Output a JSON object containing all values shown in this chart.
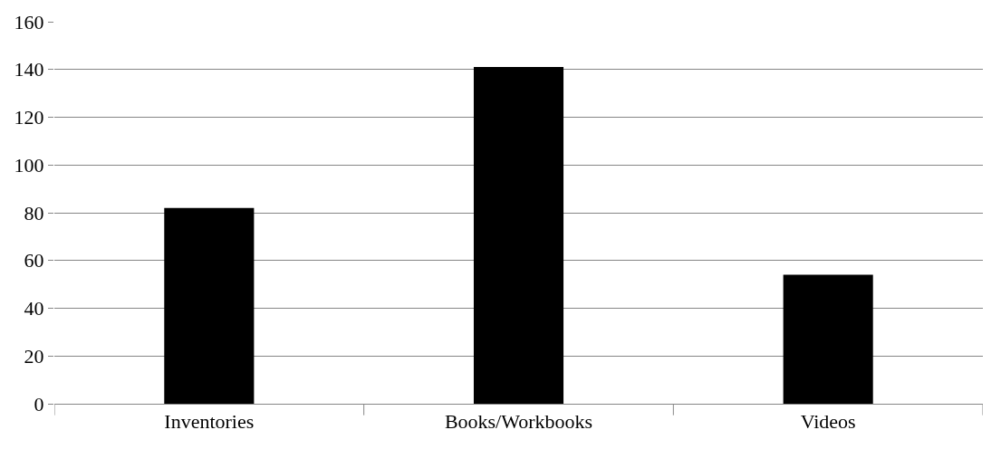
{
  "chart_data": {
    "type": "bar",
    "categories": [
      "Inventories",
      "Books/Workbooks",
      "Videos"
    ],
    "values": [
      82,
      141,
      54
    ],
    "color": "#000000",
    "ylim": [
      0,
      160
    ],
    "yticks": [
      0,
      20,
      40,
      60,
      80,
      100,
      120,
      140,
      160
    ],
    "grid": "y"
  }
}
